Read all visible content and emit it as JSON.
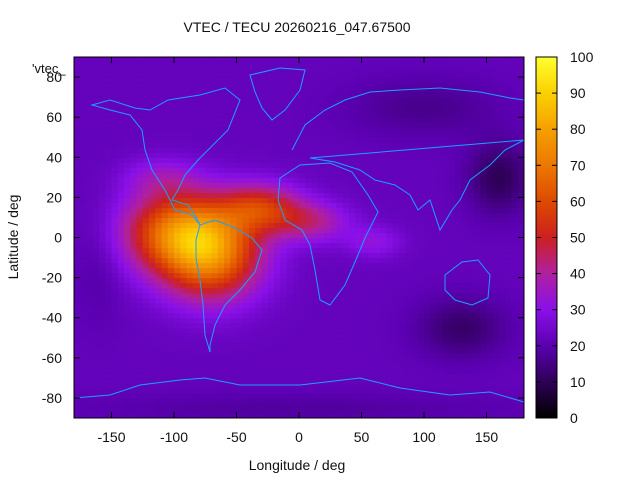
{
  "chart_data": {
    "type": "heatmap",
    "title": "VTEC / TECU 20260216_047.67500",
    "xlabel": "Longitude / deg",
    "ylabel": "Latitude / deg",
    "series_key": "'vtec_",
    "xlim": [
      -180,
      180
    ],
    "ylim": [
      -90,
      90
    ],
    "xticks": [
      -150,
      -100,
      -50,
      0,
      50,
      100,
      150
    ],
    "yticks": [
      -80,
      -60,
      -40,
      -20,
      0,
      20,
      40,
      60,
      80
    ],
    "colorbar": {
      "min": 0,
      "max": 100,
      "ticks": [
        0,
        10,
        20,
        30,
        40,
        50,
        60,
        70,
        80,
        90,
        100
      ]
    },
    "background_vtec": 22,
    "features": [
      {
        "lon": -95,
        "lat": 3,
        "rlon": 45,
        "rlat": 20,
        "amp": 44
      },
      {
        "lon": -70,
        "lat": -10,
        "rlon": 40,
        "rlat": 22,
        "amp": 40
      },
      {
        "lon": -30,
        "lat": 15,
        "rlon": 32,
        "rlat": 12,
        "amp": 30
      },
      {
        "lon": 10,
        "lat": 8,
        "rlon": 30,
        "rlat": 10,
        "amp": 18
      },
      {
        "lon": 60,
        "lat": -2,
        "rlon": 22,
        "rlat": 8,
        "amp": 10
      },
      {
        "lon": -110,
        "lat": 30,
        "rlon": 30,
        "rlat": 10,
        "amp": 10
      },
      {
        "lon": 160,
        "lat": 30,
        "rlon": 25,
        "rlat": 18,
        "amp": -12
      },
      {
        "lon": 130,
        "lat": -45,
        "rlon": 35,
        "rlat": 15,
        "amp": -10
      },
      {
        "lon": 100,
        "lat": 65,
        "rlon": 60,
        "rlat": 15,
        "amp": -6
      },
      {
        "lon": -160,
        "lat": -10,
        "rlon": 20,
        "rlat": 30,
        "amp": -4
      },
      {
        "lon": 0,
        "lat": -85,
        "rlon": 180,
        "rlat": 8,
        "amp": -4
      }
    ],
    "grid": false,
    "legend": "colorbar-right"
  }
}
